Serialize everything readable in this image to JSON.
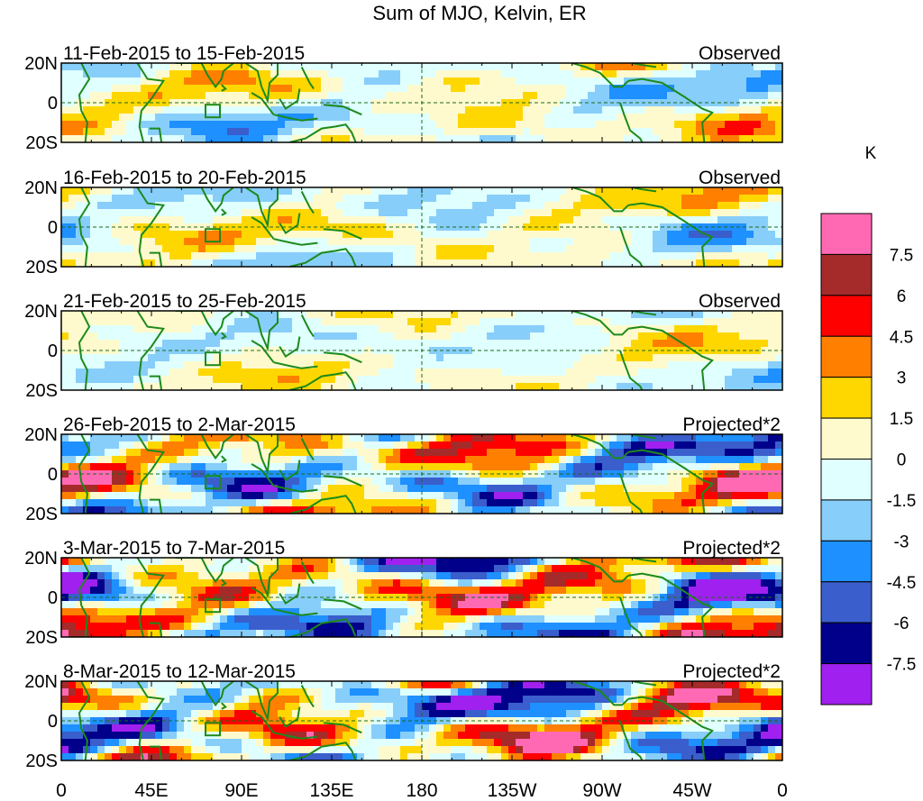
{
  "chart_data": {
    "type": "heatmap",
    "title": "Sum of MJO, Kelvin, ER",
    "variable": "Sum of MJO, Kelvin, ER",
    "units": "K",
    "x_ticks": [
      "0",
      "45E",
      "90E",
      "135E",
      "180",
      "135W",
      "90W",
      "45W",
      "0"
    ],
    "y_ticks": [
      "20N",
      "0",
      "20S"
    ],
    "colorbar": {
      "label": "K",
      "tick_labels": [
        "7.5",
        "6",
        "4.5",
        "3",
        "1.5",
        "0",
        "-1.5",
        "-3",
        "-4.5",
        "-6",
        "-7.5"
      ],
      "levels": [
        -7.5,
        -6,
        -4.5,
        -3,
        -1.5,
        0,
        1.5,
        3,
        4.5,
        6,
        7.5
      ],
      "colors": [
        "#a020f0",
        "#00008b",
        "#3a5fcd",
        "#1e90ff",
        "#87cefa",
        "#e0ffff",
        "#fffacd",
        "#ffd700",
        "#ff7f00",
        "#ff0000",
        "#a52a2a",
        "#ff69b4"
      ]
    },
    "panels": [
      {
        "period": "11-Feb-2015 to 15-Feb-2015",
        "label": "Observed",
        "amplitude": 0.45,
        "seed": 1
      },
      {
        "period": "16-Feb-2015 to 20-Feb-2015",
        "label": "Observed",
        "amplitude": 0.42,
        "seed": 2
      },
      {
        "period": "21-Feb-2015 to 25-Feb-2015",
        "label": "Observed",
        "amplitude": 0.32,
        "seed": 3
      },
      {
        "period": "26-Feb-2015 to 2-Mar-2015",
        "label": "Projected*2",
        "amplitude": 0.95,
        "seed": 4
      },
      {
        "period": "3-Mar-2015 to 7-Mar-2015",
        "label": "Projected*2",
        "amplitude": 1.05,
        "seed": 5
      },
      {
        "period": "8-Mar-2015 to 12-Mar-2015",
        "label": "Projected*2",
        "amplitude": 1.1,
        "seed": 6
      }
    ]
  }
}
